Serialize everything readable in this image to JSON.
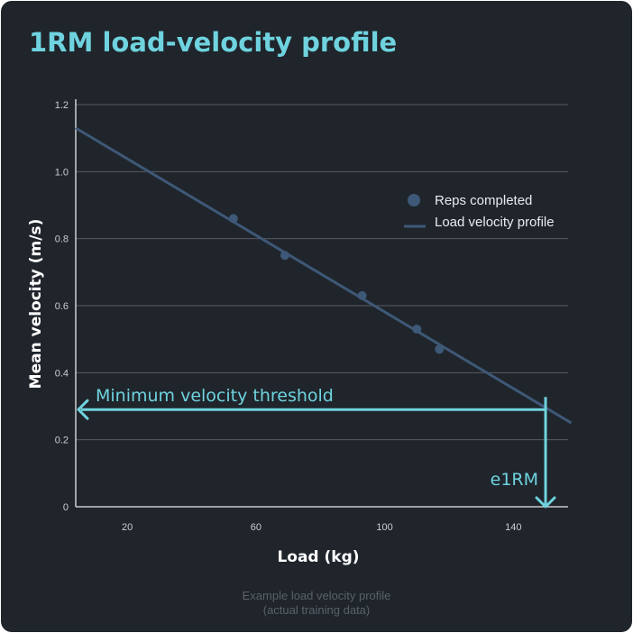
{
  "title": "1RM load-velocity profile",
  "caption_line1": "Example load velocity profile",
  "caption_line2": "(actual training data)",
  "colors": {
    "background": "#1f252b",
    "accent": "#6fd3df",
    "series": "#3e5877",
    "grid": "#555b62"
  },
  "chart_data": {
    "type": "scatter",
    "xlabel": "Load (kg)",
    "ylabel": "Mean velocity (m/s)",
    "xlim": [
      4,
      157
    ],
    "ylim": [
      0,
      1.2
    ],
    "x_ticks": [
      20,
      60,
      100,
      140
    ],
    "y_ticks": [
      0,
      0.2,
      0.4,
      0.6,
      0.8,
      1.0,
      1.2
    ],
    "y_tick_labels": [
      "0",
      "0.2",
      "0.4",
      "0.6",
      "0.8",
      "1.0",
      "1.2"
    ],
    "grid": true,
    "legend_position": "right",
    "series": [
      {
        "name": "Reps completed",
        "kind": "scatter",
        "points": [
          [
            53,
            0.86
          ],
          [
            69,
            0.75
          ],
          [
            93,
            0.63
          ],
          [
            110,
            0.53
          ],
          [
            117,
            0.47
          ]
        ]
      },
      {
        "name": "Load velocity profile",
        "kind": "line",
        "points": [
          [
            4,
            1.13
          ],
          [
            158,
            0.25
          ]
        ]
      }
    ],
    "annotations": {
      "threshold_label": "Minimum velocity threshold",
      "threshold_velocity": 0.29,
      "e1rm_label": "e1RM",
      "e1rm_load": 150
    }
  }
}
